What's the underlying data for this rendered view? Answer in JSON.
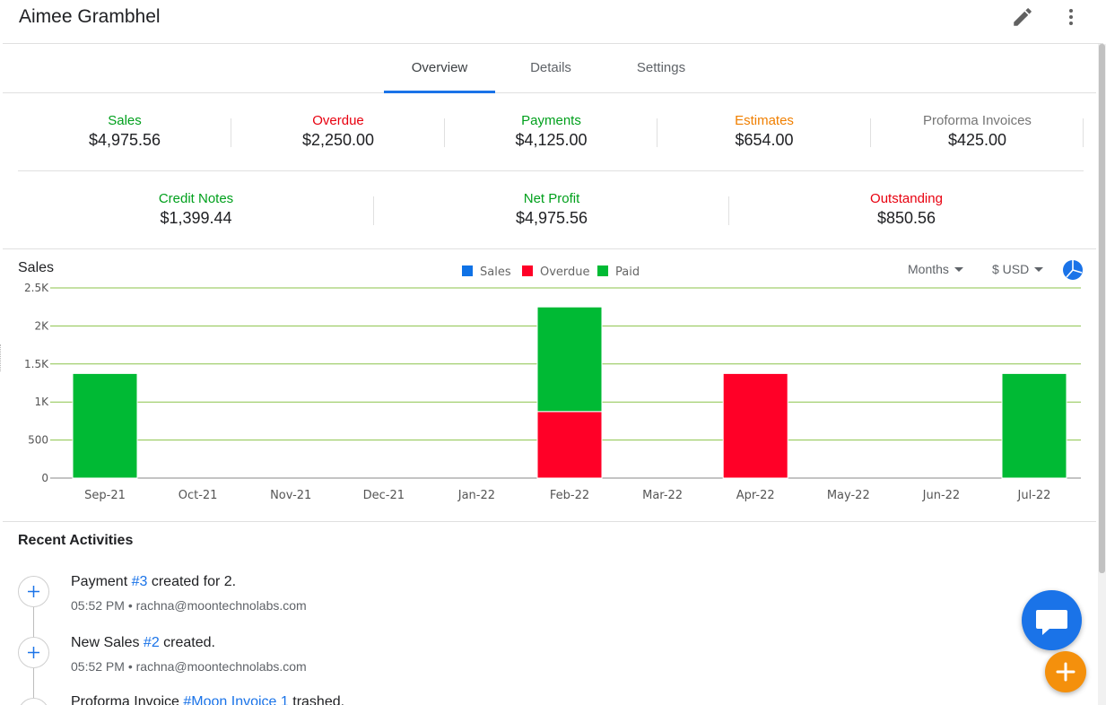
{
  "header": {
    "title": "Aimee Grambhel",
    "edit_icon": "pencil-icon",
    "more_icon": "more-vert-icon"
  },
  "tabs": [
    {
      "label": "Overview",
      "active": true
    },
    {
      "label": "Details",
      "active": false
    },
    {
      "label": "Settings",
      "active": false
    }
  ],
  "stats_row1": [
    {
      "label": "Sales",
      "value": "$4,975.56",
      "color": "#00a01c"
    },
    {
      "label": "Overdue",
      "value": "$2,250.00",
      "color": "#e8000f"
    },
    {
      "label": "Payments",
      "value": "$4,125.00",
      "color": "#00a01c"
    },
    {
      "label": "Estimates",
      "value": "$654.00",
      "color": "#f07f00"
    },
    {
      "label": "Proforma Invoices",
      "value": "$425.00",
      "color": "#757575"
    }
  ],
  "stats_row2": [
    {
      "label": "Credit Notes",
      "value": "$1,399.44",
      "color": "#00a01c"
    },
    {
      "label": "Net Profit",
      "value": "$4,975.56",
      "color": "#00a01c"
    },
    {
      "label": "Outstanding",
      "value": "$850.56",
      "color": "#e8000f"
    }
  ],
  "chart_controls": {
    "period": "Months",
    "currency": "$ USD",
    "chart_type_icon": "pie-chart-icon"
  },
  "chart_data": {
    "type": "bar",
    "stacked": true,
    "title": "Sales",
    "categories": [
      "Sep-21",
      "Oct-21",
      "Nov-21",
      "Dec-21",
      "Jan-22",
      "Feb-22",
      "Mar-22",
      "Apr-22",
      "May-22",
      "Jun-22",
      "Jul-22"
    ],
    "series": [
      {
        "name": "Sales",
        "color": "#0f72e6",
        "values": [
          0,
          0,
          0,
          0,
          0,
          0,
          0,
          0,
          0,
          0,
          0
        ]
      },
      {
        "name": "Overdue",
        "color": "#ff0027",
        "values": [
          0,
          0,
          0,
          0,
          0,
          875,
          0,
          1375,
          0,
          0,
          0
        ]
      },
      {
        "name": "Paid",
        "color": "#00ba34",
        "values": [
          1375,
          0,
          0,
          0,
          0,
          1375,
          0,
          0,
          0,
          0,
          1375
        ]
      }
    ],
    "yticks": [
      "0",
      "500",
      "1K",
      "1.5K",
      "2K",
      "2.5K"
    ],
    "ylim": [
      0,
      2500
    ],
    "grid": true,
    "legend_position": "top-center"
  },
  "recent": {
    "title": "Recent Activities",
    "items": [
      {
        "prefix": "Payment ",
        "link": "#3",
        "suffix": " created for 2.",
        "time": "05:52 PM",
        "user": "rachna@moontechnolabs.com",
        "icon": "plus-icon"
      },
      {
        "prefix": "New Sales ",
        "link": "#2",
        "suffix": " created.",
        "time": "05:52 PM",
        "user": "rachna@moontechnolabs.com",
        "icon": "plus-icon"
      },
      {
        "prefix": "Proforma Invoice ",
        "link": "#Moon Invoice 1",
        "suffix": " trashed.",
        "time": "",
        "user": "",
        "icon": "plus-icon"
      }
    ]
  },
  "fabs": {
    "chat_icon": "chat-icon",
    "add_icon": "plus-icon"
  }
}
